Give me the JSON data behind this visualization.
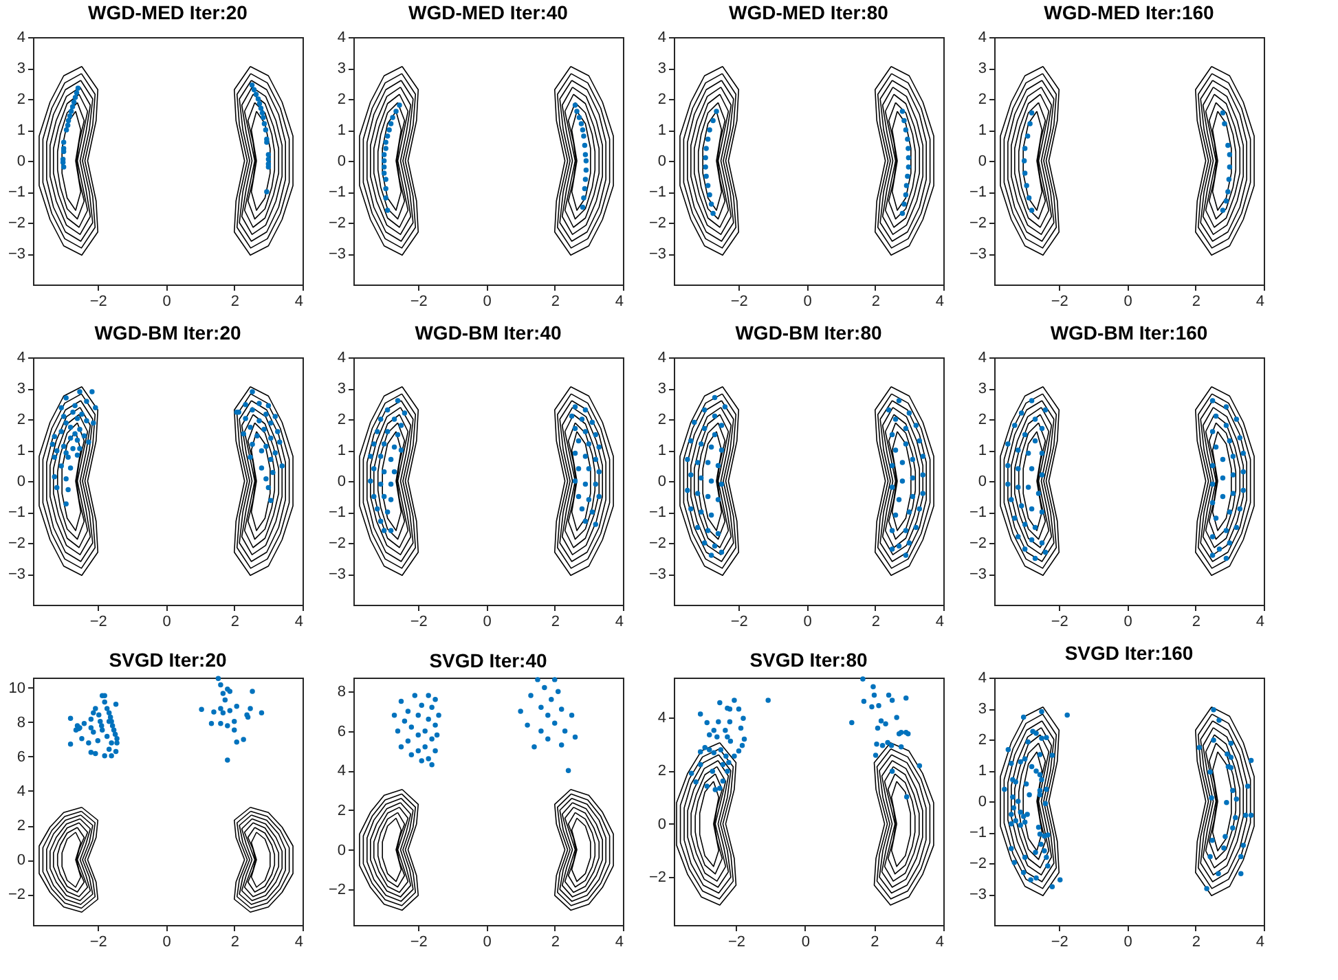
{
  "chart_data": [
    {
      "type": "scatter",
      "title": "WGD-MED Iter:20",
      "xlim": [
        -3.9,
        4
      ],
      "ylim": [
        -4,
        4
      ],
      "xticks": [
        -2,
        0,
        2,
        4
      ],
      "yticks": [
        -3,
        -2,
        -1,
        0,
        1,
        2,
        3,
        4
      ],
      "marker": "circle",
      "series": [
        {
          "color": "#0072bd",
          "x": [
            -2.58,
            -2.62,
            -2.66,
            -2.7,
            -2.74,
            -2.78,
            -2.82,
            -2.86,
            -2.88,
            -2.92,
            -3.0,
            -3.0,
            -3.0,
            -3.02,
            -3.02,
            -3.0,
            2.52,
            2.58,
            2.64,
            2.7,
            2.74,
            2.78,
            2.82,
            2.85,
            2.88,
            2.92,
            2.95,
            2.95,
            3.0,
            3.0,
            3.0,
            3.0,
            2.95
          ],
          "values": [
            2.35,
            2.2,
            2.05,
            1.9,
            1.75,
            1.6,
            1.45,
            1.3,
            1.15,
            1.0,
            0.6,
            0.4,
            0.3,
            0.05,
            -0.05,
            -0.2,
            2.45,
            2.3,
            2.15,
            2.0,
            1.85,
            1.7,
            1.55,
            1.4,
            1.2,
            1.0,
            0.7,
            0.6,
            0.2,
            0.05,
            -0.1,
            -0.2,
            -1.0
          ]
        }
      ]
    },
    {
      "type": "scatter",
      "title": "WGD-MED Iter:40",
      "xlim": [
        -3.9,
        4
      ],
      "ylim": [
        -4,
        4
      ],
      "xticks": [
        -2,
        0,
        2,
        4
      ],
      "yticks": [
        -3,
        -2,
        -1,
        0,
        1,
        2,
        3,
        4
      ],
      "marker": "circle",
      "series": [
        {
          "color": "#0072bd",
          "x": [
            -2.55,
            -2.65,
            -2.75,
            -2.8,
            -2.85,
            -2.9,
            -2.95,
            -2.95,
            -3.0,
            -3.0,
            -3.0,
            -3.0,
            -2.95,
            -2.95,
            -2.95,
            -2.9,
            2.6,
            2.65,
            2.72,
            2.78,
            2.82,
            2.85,
            2.88,
            2.9,
            2.92,
            2.92,
            2.9,
            2.88,
            2.85,
            2.82
          ],
          "values": [
            1.8,
            1.6,
            1.4,
            1.2,
            1.0,
            0.8,
            0.6,
            0.4,
            0.2,
            0,
            -0.2,
            -0.4,
            -0.6,
            -0.9,
            -1.2,
            -1.6,
            1.8,
            1.6,
            1.4,
            1.2,
            1.0,
            0.8,
            0.5,
            0.2,
            0,
            -0.3,
            -0.6,
            -0.9,
            -1.2,
            -1.5
          ]
        }
      ]
    },
    {
      "type": "scatter",
      "title": "WGD-MED Iter:80",
      "xlim": [
        -3.9,
        4
      ],
      "ylim": [
        -4,
        4
      ],
      "xticks": [
        -2,
        0,
        2,
        4
      ],
      "yticks": [
        -3,
        -2,
        -1,
        0,
        1,
        2,
        3,
        4
      ],
      "marker": "circle",
      "series": [
        {
          "color": "#0072bd",
          "x": [
            -2.65,
            -2.75,
            -2.85,
            -2.9,
            -2.95,
            -2.97,
            -2.97,
            -2.95,
            -2.9,
            -2.85,
            -2.8,
            -2.75,
            2.8,
            2.85,
            2.9,
            2.95,
            2.97,
            2.98,
            2.98,
            2.95,
            2.92,
            2.9,
            2.85,
            2.8
          ],
          "values": [
            1.6,
            1.3,
            1.0,
            0.7,
            0.4,
            0.1,
            -0.2,
            -0.5,
            -0.8,
            -1.1,
            -1.4,
            -1.7,
            1.6,
            1.3,
            1.0,
            0.7,
            0.4,
            0.1,
            -0.2,
            -0.5,
            -0.8,
            -1.1,
            -1.4,
            -1.7
          ]
        }
      ]
    },
    {
      "type": "scatter",
      "title": "WGD-MED Iter:160",
      "xlim": [
        -3.9,
        4
      ],
      "ylim": [
        -4,
        4
      ],
      "xticks": [
        -2,
        0,
        2,
        4
      ],
      "yticks": [
        -3,
        -2,
        -1,
        0,
        1,
        2,
        3,
        4
      ],
      "marker": "circle",
      "series": [
        {
          "color": "#0072bd",
          "x": [
            -2.8,
            -2.85,
            -2.92,
            -3.0,
            -3.02,
            -3.0,
            -2.95,
            -2.88,
            -2.8,
            2.8,
            2.85,
            2.95,
            3.0,
            3.0,
            2.98,
            2.95,
            2.9,
            2.8
          ],
          "values": [
            1.55,
            1.2,
            0.8,
            0.4,
            0,
            -0.4,
            -0.8,
            -1.2,
            -1.6,
            1.55,
            1.2,
            0.5,
            0.2,
            -0.2,
            -0.6,
            -1.0,
            -1.3,
            -1.6
          ]
        }
      ]
    },
    {
      "type": "scatter",
      "title": "WGD-BM Iter:20",
      "xlim": [
        -3.9,
        4
      ],
      "ylim": [
        -4,
        4
      ],
      "xticks": [
        -2,
        0,
        2,
        4
      ],
      "yticks": [
        -3,
        -2,
        -1,
        0,
        1,
        2,
        3,
        4
      ],
      "marker": "circle",
      "series": [
        {
          "color": "#0072bd",
          "x": [
            -2.53,
            -2.17,
            -2.93,
            -2.33,
            -2.67,
            -3.07,
            -2.07,
            -2.73,
            -2.47,
            -3.0,
            -2.6,
            -2.33,
            -2.13,
            -2.93,
            -2.8,
            -2.53,
            -3.07,
            -2.67,
            -2.4,
            -3.27,
            -2.8,
            -2.6,
            -2.27,
            -3.33,
            -3.0,
            -2.73,
            -2.53,
            -3.2,
            -2.93,
            -2.6,
            -3.27,
            -2.87,
            -3.07,
            -2.8,
            -3.27,
            -2.93,
            -3.2,
            -2.87,
            -2.93,
            2.53,
            2.33,
            2.73,
            3.0,
            2.13,
            2.53,
            2.93,
            3.2,
            2.33,
            2.73,
            3.07,
            2.47,
            2.87,
            3.27,
            2.27,
            2.67,
            3.07,
            3.33,
            2.53,
            2.93,
            2.8,
            3.2,
            2.47,
            3.07,
            3.4,
            2.8,
            3.13,
            2.93,
            3.0,
            3.07,
            2.07
          ],
          "values": [
            2.89,
            2.89,
            2.69,
            2.58,
            2.44,
            2.37,
            2.37,
            2.23,
            2.16,
            2.09,
            2.02,
            1.95,
            1.88,
            1.88,
            1.74,
            1.67,
            1.6,
            1.53,
            1.46,
            1.44,
            1.39,
            1.32,
            1.26,
            1.19,
            1.12,
            1.05,
            1.05,
            0.98,
            0.91,
            0.84,
            0.77,
            0.77,
            0.49,
            0.42,
            0.14,
            0.07,
            -0.21,
            -0.28,
            -0.74,
            2.89,
            2.47,
            2.51,
            2.44,
            2.23,
            2.3,
            2.16,
            2.09,
            2.02,
            1.95,
            1.88,
            1.74,
            1.67,
            1.6,
            1.53,
            1.46,
            1.39,
            1.26,
            1.19,
            1.12,
            0.98,
            0.91,
            0.77,
            0.7,
            0.49,
            0.42,
            0.28,
            0.07,
            -0.21,
            -0.63,
            2.23
          ]
        }
      ]
    },
    {
      "type": "scatter",
      "title": "WGD-BM Iter:40",
      "xlim": [
        -3.9,
        4
      ],
      "ylim": [
        -4,
        4
      ],
      "xticks": [
        -2,
        0,
        2,
        4
      ],
      "yticks": [
        -3,
        -2,
        -1,
        0,
        1,
        2,
        3,
        4
      ],
      "marker": "circle",
      "series": [
        {
          "color": "#0072bd",
          "x": [
            -2.6,
            -2.9,
            -2.4,
            -3.1,
            -2.7,
            -2.5,
            -3.2,
            -2.9,
            -2.6,
            -3.3,
            -3.0,
            -2.7,
            -2.5,
            -3.4,
            -3.1,
            -2.8,
            -3.3,
            -3.0,
            -2.7,
            -3.4,
            -3.1,
            -2.8,
            -3.3,
            -3.0,
            -2.8,
            -3.2,
            -2.9,
            -3.1,
            -2.8,
            -3.0,
            2.6,
            2.9,
            2.5,
            2.8,
            3.1,
            2.6,
            2.9,
            3.2,
            2.7,
            3.0,
            3.3,
            2.6,
            2.9,
            3.2,
            2.7,
            3.0,
            3.3,
            2.6,
            2.9,
            3.2,
            2.7,
            3.0,
            3.3,
            2.8,
            3.1,
            2.9,
            3.2
          ],
          "values": [
            2.6,
            2.3,
            2.2,
            2.0,
            2.0,
            1.8,
            1.6,
            1.6,
            1.5,
            1.2,
            1.2,
            1.1,
            1.0,
            0.8,
            0.8,
            0.7,
            0.4,
            0.3,
            0.3,
            0.0,
            -0.1,
            -0.1,
            -0.5,
            -0.5,
            -0.6,
            -0.9,
            -1.0,
            -1.3,
            -1.6,
            -1.6,
            2.4,
            2.3,
            2.1,
            2.0,
            1.9,
            1.7,
            1.6,
            1.5,
            1.3,
            1.2,
            1.1,
            0.9,
            0.8,
            0.7,
            0.4,
            0.4,
            0.3,
            0.0,
            -0.1,
            -0.1,
            -0.5,
            -0.6,
            -0.5,
            -0.9,
            -1.0,
            -1.3,
            -1.4
          ]
        }
      ]
    },
    {
      "type": "scatter",
      "title": "WGD-BM Iter:80",
      "xlim": [
        -3.9,
        4
      ],
      "ylim": [
        -4,
        4
      ],
      "xticks": [
        -2,
        0,
        2,
        4
      ],
      "yticks": [
        -3,
        -2,
        -1,
        0,
        1,
        2,
        3,
        4
      ],
      "marker": "circle",
      "series": [
        {
          "color": "#0072bd",
          "x": [
            -2.7,
            -2.4,
            -3.0,
            -2.7,
            -3.3,
            -2.5,
            -3.0,
            -2.7,
            -3.4,
            -3.1,
            -2.8,
            -2.5,
            -3.5,
            -3.2,
            -2.9,
            -2.6,
            -3.4,
            -3.1,
            -2.8,
            -2.5,
            -3.5,
            -3.2,
            -2.9,
            -2.6,
            -3.4,
            -3.1,
            -2.8,
            -3.2,
            -2.9,
            -2.6,
            -3.0,
            -2.7,
            -2.8,
            -2.5,
            2.7,
            2.4,
            3.0,
            2.6,
            3.2,
            2.9,
            2.5,
            3.3,
            2.9,
            2.6,
            3.4,
            3.1,
            2.8,
            2.5,
            3.4,
            3.1,
            2.8,
            2.5,
            3.4,
            3.1,
            2.7,
            3.3,
            3.0,
            2.6,
            3.2,
            2.9,
            2.5,
            3.0,
            2.7,
            2.9,
            2.5
          ],
          "values": [
            2.7,
            2.4,
            2.3,
            2.1,
            1.9,
            1.8,
            1.7,
            1.5,
            1.3,
            1.2,
            1.1,
            1.0,
            0.7,
            0.6,
            0.6,
            0.5,
            0.2,
            0.1,
            0.0,
            -0.1,
            -0.3,
            -0.4,
            -0.5,
            -0.6,
            -0.9,
            -1.0,
            -1.1,
            -1.5,
            -1.6,
            -1.7,
            -2.0,
            -2.1,
            -2.4,
            -2.3,
            2.6,
            2.3,
            2.2,
            2.0,
            1.8,
            1.7,
            1.5,
            1.3,
            1.2,
            1.0,
            0.8,
            0.7,
            0.6,
            0.5,
            0.2,
            0.1,
            0.0,
            -0.2,
            -0.4,
            -0.5,
            -0.6,
            -0.9,
            -1.0,
            -1.1,
            -1.5,
            -1.6,
            -1.6,
            -2.0,
            -2.1,
            -2.4,
            -2.2
          ]
        }
      ]
    },
    {
      "type": "scatter",
      "title": "WGD-BM Iter:160",
      "xlim": [
        -3.9,
        4
      ],
      "ylim": [
        -4,
        4
      ],
      "xticks": [
        -2,
        0,
        2,
        4
      ],
      "yticks": [
        -3,
        -2,
        -1,
        0,
        1,
        2,
        3,
        4
      ],
      "marker": "circle",
      "series": [
        {
          "color": "#0072bd",
          "x": [
            -2.8,
            -2.4,
            -3.1,
            -2.7,
            -3.3,
            -2.5,
            -3.0,
            -2.7,
            -3.5,
            -3.2,
            -2.9,
            -2.5,
            -3.5,
            -3.2,
            -2.8,
            -2.5,
            -3.5,
            -3.2,
            -2.9,
            -2.6,
            -3.4,
            -3.1,
            -2.8,
            -2.5,
            -3.3,
            -3.0,
            -2.7,
            -3.2,
            -2.8,
            -2.5,
            -3.0,
            -2.7,
            -2.4,
            2.5,
            2.9,
            2.6,
            3.2,
            2.9,
            2.5,
            3.3,
            3.0,
            2.6,
            3.4,
            3.1,
            2.8,
            2.5,
            3.4,
            3.1,
            2.8,
            2.5,
            3.4,
            3.1,
            2.8,
            2.5,
            3.3,
            3.0,
            2.6,
            3.2,
            2.9,
            2.5,
            3.0,
            2.7,
            2.9,
            2.5
          ],
          "values": [
            2.6,
            2.3,
            2.2,
            2.0,
            1.8,
            1.7,
            1.5,
            1.3,
            1.2,
            1.0,
            0.9,
            0.9,
            0.5,
            0.4,
            0.4,
            0.2,
            -0.1,
            -0.2,
            -0.2,
            -0.4,
            -0.6,
            -0.8,
            -0.9,
            -1.0,
            -1.2,
            -1.4,
            -1.5,
            -1.8,
            -1.9,
            -2.0,
            -2.2,
            -2.5,
            -2.3,
            2.6,
            2.4,
            2.1,
            2.0,
            1.8,
            1.6,
            1.4,
            1.3,
            1.1,
            0.9,
            0.8,
            0.7,
            0.5,
            0.3,
            0.2,
            0.1,
            -0.1,
            -0.3,
            -0.4,
            -0.5,
            -0.7,
            -0.9,
            -1.0,
            -1.2,
            -1.5,
            -1.6,
            -1.8,
            -2.0,
            -2.2,
            -2.5,
            -2.4
          ]
        }
      ]
    },
    {
      "type": "scatter",
      "title": "SVGD Iter:20",
      "xlim": [
        -3.9,
        4
      ],
      "ylim": [
        -3.8,
        10.6
      ],
      "xticks": [
        -2,
        0,
        2,
        4
      ],
      "yticks": [
        -2,
        0,
        2,
        4,
        6,
        8,
        10
      ],
      "marker": "circle",
      "series": [
        {
          "color": "#0072bd",
          "x": [
            -2.8,
            -2.8,
            -2.6,
            -2.56,
            -2.64,
            -2.53,
            -2.47,
            -2.4,
            -2.2,
            -2.13,
            -2.07,
            -2.2,
            -2.13,
            -2.27,
            -2.2,
            -2.07,
            -2.0,
            -1.87,
            -1.8,
            -1.8,
            -1.73,
            -1.67,
            -1.63,
            -1.6,
            -1.57,
            -1.53,
            -1.49,
            -1.44,
            -1.44,
            -1.47,
            -1.6,
            -1.67,
            -1.6,
            -1.47,
            -1.73,
            -1.93,
            -1.97,
            -1.87,
            -1.8,
            -1.67,
            -1.89,
            1.53,
            1.6,
            1.67,
            1.8,
            1.87,
            1.73,
            1.6,
            1.4,
            1.04,
            1.67,
            1.87,
            2.07,
            2.53,
            2.0,
            2.37,
            2.8,
            2.4,
            1.6,
            1.8,
            2.0,
            2.07,
            2.27,
            1.8,
            1.33,
            2.47
          ],
          "values": [
            8.23,
            6.73,
            7.8,
            7.63,
            7.55,
            7.68,
            7.05,
            7.93,
            8.18,
            8.55,
            8.8,
            7.68,
            7.43,
            6.8,
            6.25,
            6.18,
            6.93,
            9.55,
            9.55,
            9.18,
            8.8,
            8.55,
            8.3,
            8.05,
            7.8,
            7.55,
            7.3,
            7.05,
            6.8,
            9.05,
            6.8,
            6.43,
            6.05,
            6.3,
            7.18,
            8.05,
            8.43,
            7.55,
            6.05,
            8.05,
            7.8,
            10.55,
            10.18,
            9.68,
            9.93,
            9.8,
            9.3,
            8.8,
            8.6,
            8.75,
            8.55,
            8.68,
            8.93,
            9.8,
            8.05,
            8.43,
            8.55,
            8.3,
            7.93,
            7.8,
            7.55,
            6.85,
            7.0,
            5.8,
            7.93,
            8.8
          ]
        }
      ]
    },
    {
      "type": "scatter",
      "title": "SVGD Iter:40",
      "xlim": [
        -3.9,
        4
      ],
      "ylim": [
        -3.8,
        8.7
      ],
      "xticks": [
        -2,
        0,
        2,
        4
      ],
      "yticks": [
        -2,
        0,
        2,
        4,
        6,
        8
      ],
      "marker": "circle",
      "series": [
        {
          "color": "#0072bd",
          "x": [
            -2.7,
            -2.6,
            -2.5,
            -2.4,
            -2.3,
            -2.3,
            -2.2,
            -2.2,
            -2.1,
            -2.0,
            -2.0,
            -1.9,
            -1.9,
            -1.8,
            -1.8,
            -1.7,
            -1.7,
            -1.6,
            -1.6,
            -1.6,
            -1.5,
            -1.5,
            -1.5,
            -1.45,
            -1.4,
            -2.5,
            -2.0,
            -1.7,
            1.0,
            1.2,
            1.3,
            1.5,
            1.6,
            1.6,
            1.7,
            1.8,
            1.8,
            1.9,
            2.0,
            2.1,
            2.2,
            2.2,
            2.3,
            2.4,
            2.5,
            2.6,
            1.4,
            2.0
          ],
          "values": [
            6.8,
            6.0,
            7.5,
            6.5,
            5.5,
            7.0,
            6.2,
            4.8,
            7.8,
            5.8,
            6.8,
            4.5,
            7.3,
            6.0,
            5.2,
            7.8,
            6.6,
            5.6,
            4.3,
            7.2,
            6.3,
            5.0,
            7.6,
            5.8,
            6.8,
            5.2,
            5.0,
            4.6,
            7.0,
            6.3,
            7.8,
            8.6,
            7.2,
            6.0,
            8.2,
            6.8,
            5.6,
            7.6,
            6.4,
            8.0,
            5.3,
            7.1,
            6.0,
            4.0,
            6.8,
            5.7,
            5.2,
            8.6
          ]
        }
      ]
    },
    {
      "type": "scatter",
      "title": "SVGD Iter:80",
      "xlim": [
        -3.8,
        4
      ],
      "ylim": [
        -3.8,
        5.5
      ],
      "xticks": [
        -2,
        0,
        2,
        4
      ],
      "yticks": [
        -2,
        0,
        2,
        4
      ],
      "marker": "circle",
      "series": [
        {
          "color": "#0072bd",
          "x": [
            -3.03,
            -2.84,
            -2.47,
            -2.05,
            -2.25,
            -2.18,
            -1.92,
            -1.79,
            -1.86,
            -1.76,
            -1.82,
            -1.92,
            -2.18,
            -2.31,
            -2.51,
            -2.64,
            -2.77,
            -2.55,
            -2.25,
            -2.16,
            -2.9,
            -2.77,
            -3.03,
            -2.64,
            -2.44,
            -2.29,
            -2.05,
            -2.21,
            -2.38,
            -2.25,
            -2.68,
            -3.03,
            -3.29,
            -3.16,
            -2.84,
            -2.6,
            -2.47,
            -2.38,
            -1.07,
            1.67,
            1.97,
            2.0,
            1.7,
            1.93,
            2.13,
            2.42,
            2.52,
            2.92,
            1.35,
            2.2,
            2.1,
            2.33,
            2.65,
            2.72,
            2.78,
            2.92,
            2.98,
            2.39,
            2.07,
            2.24,
            2.04,
            2.5,
            2.78,
            3.31,
            2.52,
            2.94
          ],
          "values": [
            4.13,
            3.81,
            4.56,
            4.65,
            4.35,
            4.32,
            4.32,
            3.97,
            3.6,
            3.19,
            2.95,
            2.74,
            3.84,
            3.52,
            3.84,
            3.52,
            3.35,
            3.27,
            3.27,
            3.11,
            2.87,
            2.79,
            2.71,
            2.68,
            2.79,
            2.55,
            2.55,
            2.31,
            2.23,
            1.98,
            1.98,
            2.23,
            1.9,
            1.58,
            1.42,
            1.29,
            1.34,
            1.61,
            4.65,
            5.45,
            5.16,
            4.84,
            4.61,
            4.4,
            4.45,
            4.84,
            4.65,
            4.73,
            3.81,
            3.87,
            3.6,
            3.76,
            4.0,
            3.39,
            3.44,
            3.44,
            3.39,
            3.06,
            3.0,
            2.95,
            2.58,
            2.95,
            2.9,
            2.19,
            1.98,
            1.02
          ]
        }
      ]
    },
    {
      "type": "scatter",
      "title": "SVGD Iter:160",
      "xlim": [
        -3.9,
        4
      ],
      "ylim": [
        -4,
        4
      ],
      "xticks": [
        -2,
        0,
        2,
        4
      ],
      "yticks": [
        -3,
        -2,
        -1,
        0,
        1,
        2,
        3,
        4
      ],
      "marker": "circle",
      "series": [
        {
          "color": "#0072bd",
          "x": [
            -3.04,
            -2.51,
            -1.76,
            -2.77,
            -2.67,
            -2.37,
            -2.51,
            -2.91,
            -2.56,
            -2.2,
            -3.49,
            -3.4,
            -3.13,
            -3.0,
            -2.8,
            -2.67,
            -3.36,
            -3.27,
            -2.56,
            -2.51,
            -3.6,
            -2.96,
            -2.56,
            -2.37,
            -3.36,
            -2.87,
            -2.56,
            -3.2,
            -3.33,
            -2.4,
            -3.4,
            -3.13,
            -3.04,
            -3.27,
            -3.4,
            -3.13,
            -3.0,
            -2.93,
            -2.6,
            -2.56,
            -2.43,
            -2.33,
            -3.4,
            -2.53,
            -2.43,
            -2.69,
            -3.31,
            -3.0,
            -2.37,
            -2.33,
            -3.04,
            -2.67,
            -2.83,
            -1.97,
            -2.2,
            2.53,
            2.69,
            2.53,
            2.11,
            3.04,
            2.93,
            3.04,
            3.63,
            2.96,
            3.04,
            2.43,
            3.09,
            3.53,
            2.91,
            2.47,
            3.2,
            3.47,
            3.63,
            3.17,
            3.09,
            2.87,
            2.49,
            3.4,
            2.83,
            3.33,
            2.43,
            2.67,
            3.33,
            2.33
          ],
          "values": [
            2.72,
            2.9,
            2.79,
            2.26,
            2.2,
            2.06,
            2.04,
            1.92,
            1.51,
            1.49,
            1.67,
            1.23,
            1.28,
            1.37,
            1.12,
            0.98,
            0.7,
            0.63,
            0.86,
            0.7,
            0.39,
            0.56,
            0.35,
            0.39,
            0.14,
            0.21,
            0.21,
            0,
            -0.21,
            -0.07,
            -0.42,
            -0.35,
            -0.49,
            -0.63,
            -0.73,
            -0.77,
            -0.67,
            -0.42,
            -0.84,
            -1.06,
            -1.12,
            -1.09,
            -1.53,
            -1.39,
            -1.6,
            -1.65,
            -1.98,
            -1.81,
            -1.81,
            -2.09,
            -2.3,
            -2.48,
            -2.54,
            -2.54,
            -2.76,
            2.96,
            2.62,
            1.98,
            1.74,
            1.88,
            1.53,
            1.42,
            1.32,
            1.12,
            1.09,
            0.95,
            0.35,
            0.49,
            -0.04,
            0.11,
            0.07,
            -0.45,
            -0.45,
            -0.53,
            -0.86,
            -1.14,
            -1.26,
            -1.42,
            -1.51,
            -1.79,
            -1.79,
            -2.34,
            -2.34,
            -2.82
          ]
        }
      ]
    }
  ]
}
